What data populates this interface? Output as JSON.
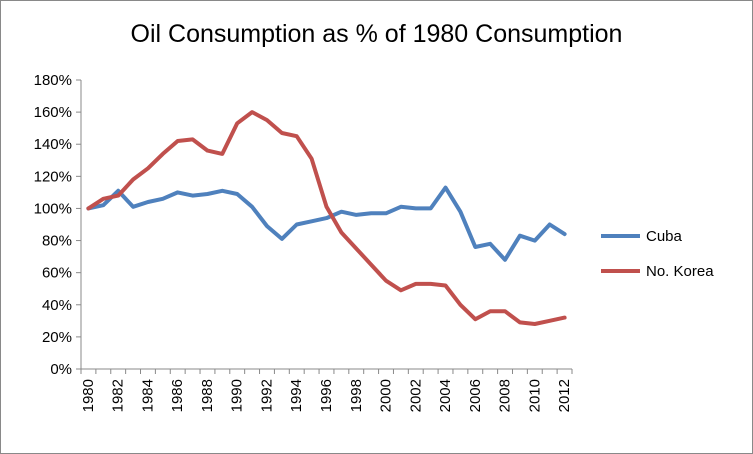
{
  "chart_data": {
    "type": "line",
    "title": "Oil Consumption as % of 1980 Consumption",
    "xlabel": "",
    "ylabel": "",
    "x": [
      1980,
      1981,
      1982,
      1983,
      1984,
      1985,
      1986,
      1987,
      1988,
      1989,
      1990,
      1991,
      1992,
      1993,
      1994,
      1995,
      1996,
      1997,
      1998,
      1999,
      2000,
      2001,
      2002,
      2003,
      2004,
      2005,
      2006,
      2007,
      2008,
      2009,
      2010,
      2011,
      2012
    ],
    "x_tick_labels": [
      "1980",
      "1982",
      "1984",
      "1986",
      "1988",
      "1990",
      "1992",
      "1994",
      "1996",
      "1998",
      "2000",
      "2002",
      "2004",
      "2006",
      "2008",
      "2010",
      "2012"
    ],
    "y_tick_labels": [
      "0%",
      "20%",
      "40%",
      "60%",
      "80%",
      "100%",
      "120%",
      "140%",
      "160%",
      "180%"
    ],
    "ylim": [
      0,
      180
    ],
    "grid": false,
    "legend_position": "right",
    "series": [
      {
        "name": "Cuba",
        "color": "#4f81bd",
        "values": [
          100,
          102,
          111,
          101,
          104,
          106,
          110,
          108,
          109,
          111,
          109,
          101,
          89,
          81,
          90,
          92,
          94,
          98,
          96,
          97,
          97,
          101,
          100,
          100,
          113,
          98,
          76,
          78,
          68,
          83,
          80,
          90,
          84
        ]
      },
      {
        "name": "No. Korea",
        "color": "#c0504d",
        "values": [
          100,
          106,
          108,
          118,
          125,
          134,
          142,
          143,
          136,
          134,
          153,
          160,
          155,
          147,
          145,
          131,
          101,
          85,
          75,
          65,
          55,
          49,
          53,
          53,
          52,
          40,
          31,
          36,
          36,
          29,
          28,
          30,
          32
        ]
      }
    ]
  }
}
